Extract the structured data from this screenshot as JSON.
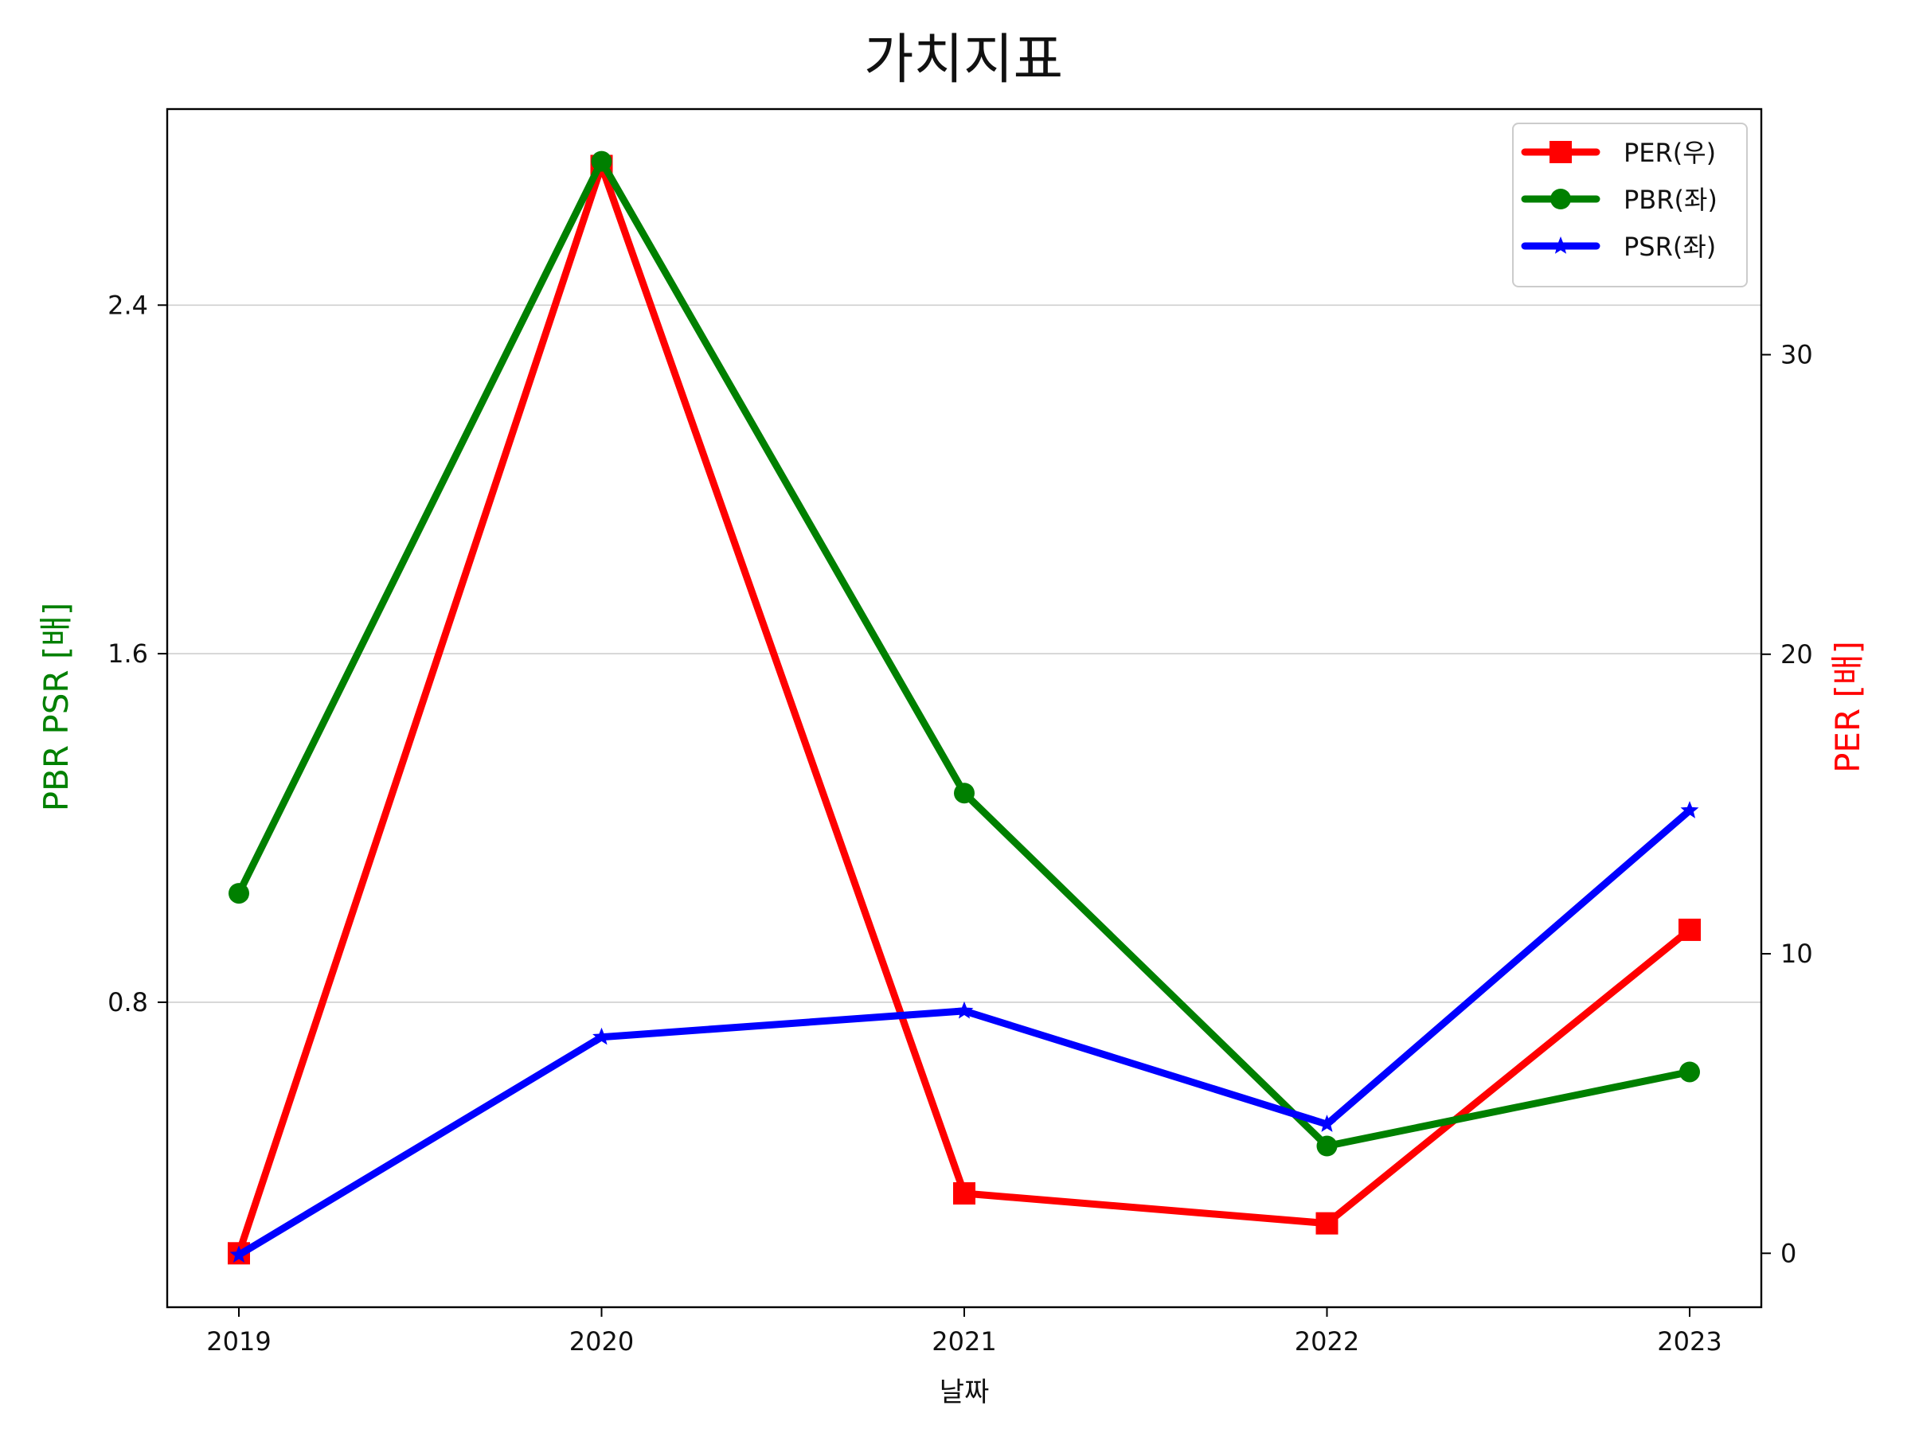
{
  "chart_data": {
    "type": "line",
    "title": "가치지표",
    "xlabel": "날짜",
    "ylabel_left": "PBR PSR [배]",
    "ylabel_right": "PER [배]",
    "categories": [
      "2019",
      "2020",
      "2021",
      "2022",
      "2023"
    ],
    "left_axis": {
      "ylim": [
        0.1,
        2.85
      ],
      "ticks": [
        0.8,
        1.6,
        2.4
      ],
      "tick_labels": [
        "0.8",
        "1.6",
        "2.4"
      ],
      "grid": true
    },
    "right_axis": {
      "ylim": [
        -1.8,
        38.2
      ],
      "ticks": [
        0,
        10,
        20,
        30
      ],
      "tick_labels": [
        "0",
        "10",
        "20",
        "30"
      ]
    },
    "series": [
      {
        "name": "PER(우)",
        "axis": "right",
        "color": "#ff0000",
        "marker": "square",
        "values": [
          0.0,
          36.3,
          2.0,
          1.0,
          10.8
        ]
      },
      {
        "name": "PBR(좌)",
        "axis": "left",
        "color": "#008000",
        "marker": "circle",
        "values": [
          1.05,
          2.73,
          1.28,
          0.47,
          0.64
        ]
      },
      {
        "name": "PSR(좌)",
        "axis": "left",
        "color": "#0000ff",
        "marker": "star",
        "values": [
          0.22,
          0.72,
          0.78,
          0.52,
          1.24
        ]
      }
    ],
    "legend_position": "top-right",
    "label_colors": {
      "left": "#008000",
      "right": "#ff0000"
    }
  }
}
